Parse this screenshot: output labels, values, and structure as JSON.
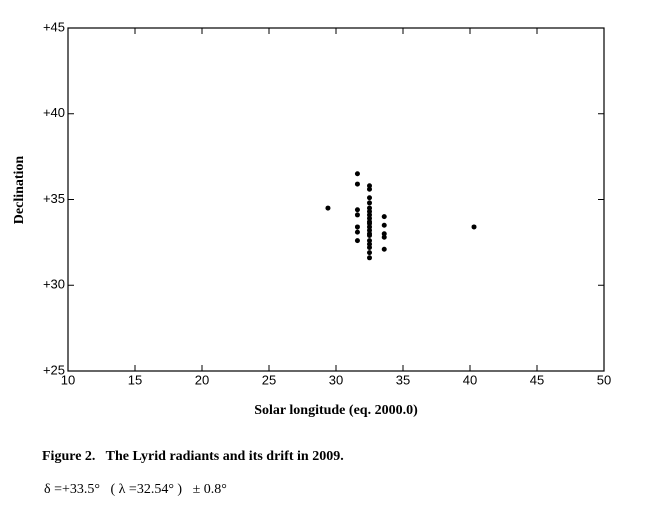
{
  "chart_data": {
    "type": "scatter",
    "x_label": "Solar longitude (eq. 2000.0)",
    "y_label": "Declination",
    "caption": "Figure 2.   The Lyrid radiants and its drift in 2009.",
    "note": "δ =+33.5°   ( λ =32.54° )   ± 0.8°",
    "color": "#000000",
    "x": [
      29.4,
      40.3,
      31.6,
      31.6,
      31.6,
      31.6,
      31.6,
      31.6,
      31.6,
      32.5,
      32.5,
      32.5,
      32.5,
      32.5,
      32.5,
      32.5,
      32.5,
      32.5,
      32.5,
      32.5,
      32.5,
      32.5,
      32.5,
      32.5,
      32.5,
      32.5,
      32.5,
      32.5,
      33.6,
      33.6,
      33.6,
      33.6,
      33.6
    ],
    "values": [
      34.5,
      33.4,
      36.5,
      35.9,
      34.4,
      34.1,
      33.4,
      33.1,
      32.6,
      35.8,
      35.6,
      35.1,
      34.8,
      34.5,
      34.3,
      34.1,
      33.9,
      33.7,
      33.6,
      33.4,
      33.2,
      33.0,
      32.9,
      32.6,
      32.4,
      32.2,
      31.9,
      31.6,
      34.0,
      33.5,
      33.0,
      32.8,
      32.1
    ],
    "xlim": [
      10,
      50
    ],
    "xticks": [
      10,
      15,
      20,
      25,
      30,
      35,
      40,
      45,
      50
    ],
    "ylim": [
      25,
      45
    ],
    "yticks": [
      {
        "value": 25,
        "label": "+25"
      },
      {
        "value": 30,
        "label": "+30"
      },
      {
        "value": 35,
        "label": "+35"
      },
      {
        "value": 40,
        "label": "+40"
      },
      {
        "value": 45,
        "label": "+45"
      }
    ]
  }
}
